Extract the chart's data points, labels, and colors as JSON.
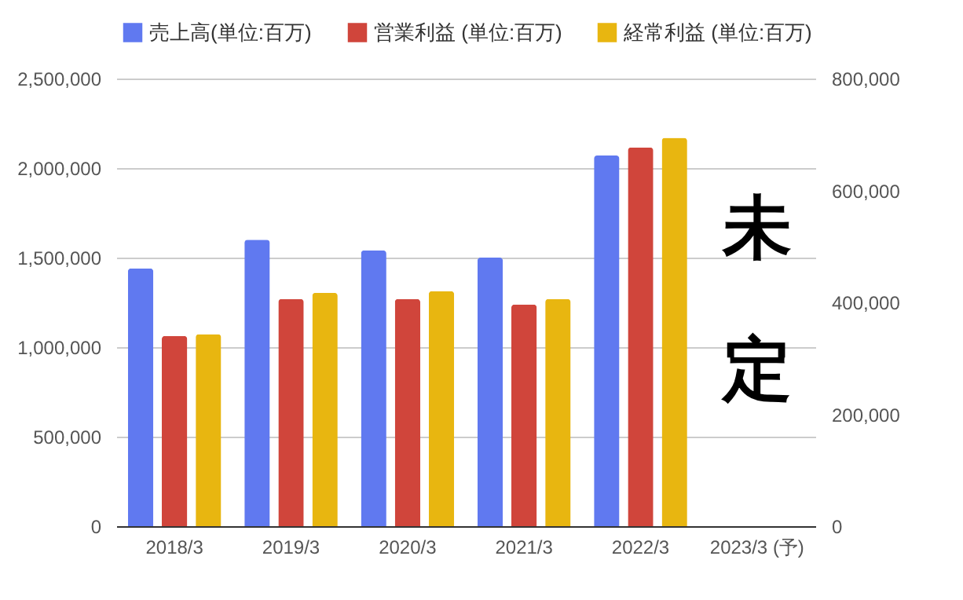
{
  "chart_data": {
    "type": "bar",
    "categories": [
      "2018/3",
      "2019/3",
      "2020/3",
      "2021/3",
      "2022/3",
      "2023/3 (予)"
    ],
    "series": [
      {
        "name": "売上高(単位:百万)",
        "color": "#6079f0",
        "values": [
          1440000,
          1600000,
          1540000,
          1500000,
          2070000,
          null
        ]
      },
      {
        "name": "営業利益 (単位:百万)",
        "color": "#d0453b",
        "axis": "y2",
        "values": [
          340000,
          406000,
          406000,
          396000,
          677000,
          null
        ]
      },
      {
        "name": "経常利益 (単位:百万)",
        "color": "#e8b610",
        "axis": "y2",
        "values": [
          343000,
          417000,
          420000,
          406000,
          694000,
          null
        ]
      }
    ],
    "ylim": [
      0,
      2500000
    ],
    "yticks": [
      0,
      {
        "value": 500000,
        "label": "500,000"
      },
      {
        "value": 1000000,
        "label": "1,000,000"
      },
      {
        "value": 1500000,
        "label": "1,500,000"
      },
      {
        "value": 2000000,
        "label": "2,000,000"
      },
      {
        "value": 2500000,
        "label": "2,500,000"
      }
    ],
    "y2lim": [
      0,
      800000
    ],
    "y2ticks": [
      0,
      {
        "value": 200000,
        "label": "200,000"
      },
      {
        "value": 400000,
        "label": "400,000"
      },
      {
        "value": 600000,
        "label": "600,000"
      },
      {
        "value": 800000,
        "label": "800,000"
      }
    ],
    "grid": "y",
    "legend": "top",
    "annotations": [
      "未定"
    ]
  }
}
